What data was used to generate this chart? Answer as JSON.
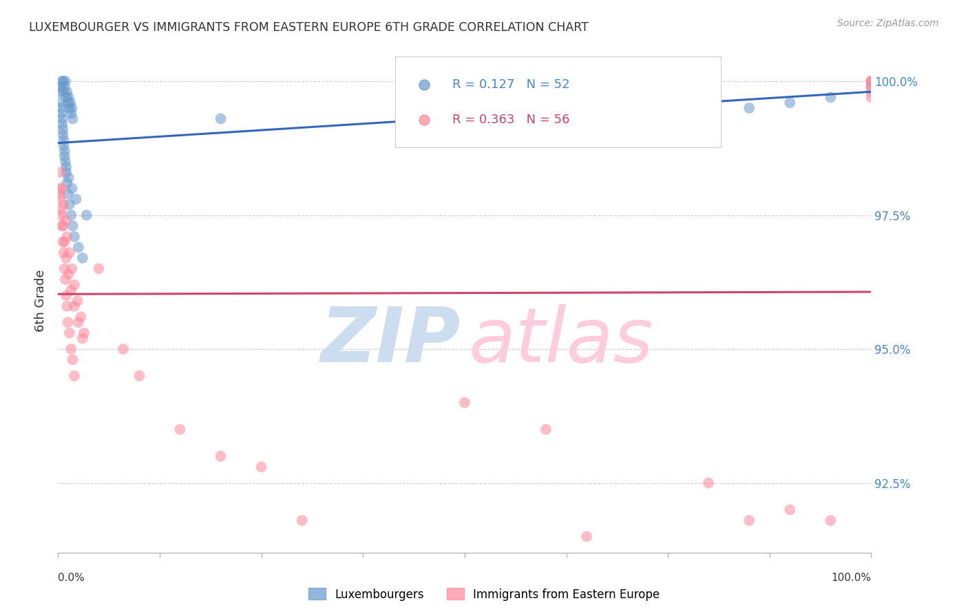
{
  "title": "LUXEMBOURGER VS IMMIGRANTS FROM EASTERN EUROPE 6TH GRADE CORRELATION CHART",
  "source": "Source: ZipAtlas.com",
  "ylabel": "6th Grade",
  "ylabel_right_ticks": [
    92.5,
    95.0,
    97.5,
    100.0
  ],
  "ylabel_right_labels": [
    "92.5%",
    "95.0%",
    "97.5%",
    "100.0%"
  ],
  "legend_label_blue": "Luxembourgers",
  "legend_label_pink": "Immigrants from Eastern Europe",
  "R_blue": 0.127,
  "N_blue": 52,
  "R_pink": 0.363,
  "N_pink": 56,
  "blue_color": "#6699CC",
  "pink_color": "#FF8899",
  "blue_line_color": "#3366BB",
  "pink_line_color": "#CC4466",
  "xmin": 0.0,
  "xmax": 100.0,
  "ymin": 91.2,
  "ymax": 100.6,
  "grid_color": "#CCCCCC",
  "background_color": "#FFFFFF",
  "blue_x": [
    0.3,
    0.5,
    0.6,
    0.7,
    0.8,
    0.9,
    1.0,
    1.1,
    1.2,
    1.3,
    1.4,
    1.5,
    1.6,
    1.7,
    1.8,
    0.4,
    0.5,
    0.6,
    0.7,
    0.8,
    0.9,
    1.0,
    1.1,
    1.2,
    1.4,
    1.6,
    1.8,
    2.0,
    2.5,
    3.0,
    0.2,
    0.3,
    0.4,
    0.5,
    0.6,
    0.7,
    0.8,
    1.0,
    1.3,
    1.7,
    2.2,
    3.5,
    20.0,
    55.0,
    60.0,
    65.0,
    75.0,
    80.0,
    85.0,
    90.0,
    95.0,
    100.0
  ],
  "blue_y": [
    99.9,
    100.0,
    100.0,
    99.8,
    99.9,
    100.0,
    99.7,
    99.8,
    99.6,
    99.7,
    99.5,
    99.6,
    99.4,
    99.5,
    99.3,
    99.5,
    99.3,
    99.1,
    98.9,
    98.7,
    98.5,
    98.3,
    98.1,
    97.9,
    97.7,
    97.5,
    97.3,
    97.1,
    96.9,
    96.7,
    99.8,
    99.6,
    99.4,
    99.2,
    99.0,
    98.8,
    98.6,
    98.4,
    98.2,
    98.0,
    97.8,
    97.5,
    99.3,
    99.5,
    99.7,
    99.6,
    99.4,
    99.8,
    99.5,
    99.6,
    99.7,
    99.9
  ],
  "pink_x": [
    0.2,
    0.3,
    0.4,
    0.5,
    0.6,
    0.7,
    0.8,
    0.9,
    1.0,
    1.1,
    1.2,
    1.4,
    1.6,
    1.8,
    2.0,
    0.3,
    0.5,
    0.7,
    0.9,
    1.1,
    1.4,
    1.7,
    2.0,
    2.4,
    2.8,
    3.2,
    0.2,
    0.4,
    0.6,
    0.8,
    1.0,
    1.3,
    1.6,
    2.0,
    2.5,
    3.0,
    5.0,
    8.0,
    10.0,
    15.0,
    20.0,
    25.0,
    30.0,
    50.0,
    60.0,
    65.0,
    80.0,
    85.0,
    90.0,
    95.0,
    100.0,
    100.0,
    100.0,
    100.0,
    100.0,
    100.0
  ],
  "pink_y": [
    98.0,
    97.8,
    97.5,
    97.3,
    97.0,
    96.8,
    96.5,
    96.3,
    96.0,
    95.8,
    95.5,
    95.3,
    95.0,
    94.8,
    94.5,
    98.3,
    98.0,
    97.7,
    97.4,
    97.1,
    96.8,
    96.5,
    96.2,
    95.9,
    95.6,
    95.3,
    97.9,
    97.6,
    97.3,
    97.0,
    96.7,
    96.4,
    96.1,
    95.8,
    95.5,
    95.2,
    96.5,
    95.0,
    94.5,
    93.5,
    93.0,
    92.8,
    91.8,
    94.0,
    93.5,
    91.5,
    92.5,
    91.8,
    92.0,
    91.8,
    99.8,
    99.7,
    100.0,
    99.9,
    100.0,
    100.0
  ]
}
